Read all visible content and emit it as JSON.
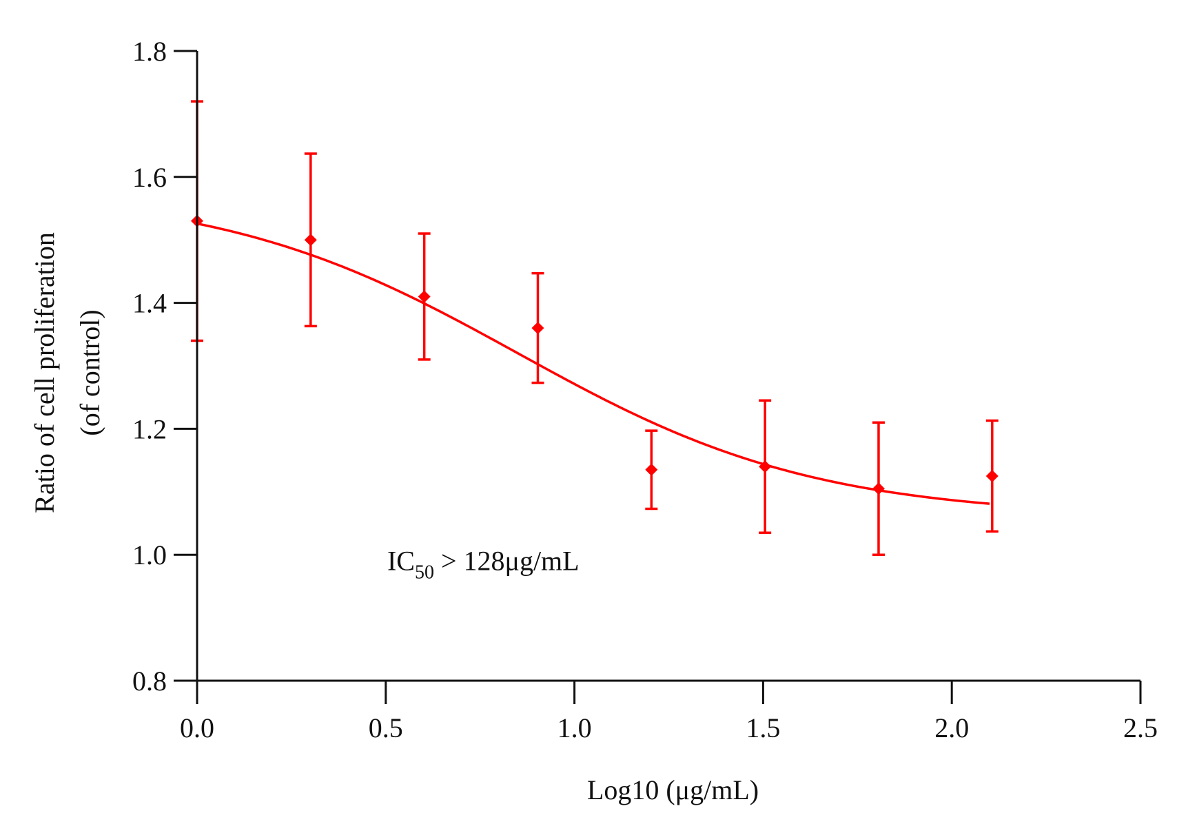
{
  "chart_data": {
    "type": "scatter",
    "xlabel": "Log10 (μg/mL)",
    "ylabel_lines": [
      "Ratio of cell proliferation",
      "(of control)"
    ],
    "xlim": [
      0.0,
      2.5
    ],
    "ylim": [
      0.8,
      1.8
    ],
    "x_ticks": [
      0.0,
      0.5,
      1.0,
      1.5,
      2.0,
      2.5
    ],
    "x_tick_labels": [
      "0.0",
      "0.5",
      "1.0",
      "1.5",
      "2.0",
      "2.5"
    ],
    "y_ticks": [
      0.8,
      1.0,
      1.2,
      1.4,
      1.6,
      1.8
    ],
    "y_tick_labels": [
      "0.8",
      "1.0",
      "1.2",
      "1.4",
      "1.6",
      "1.8"
    ],
    "grid": false,
    "color": "#ff0000",
    "series": [
      {
        "name": "Ratio of cell proliferation",
        "x": [
          0.0,
          0.301,
          0.602,
          0.903,
          1.204,
          1.505,
          1.806,
          2.107
        ],
        "y": [
          1.53,
          1.5,
          1.41,
          1.36,
          1.135,
          1.14,
          1.105,
          1.125
        ],
        "err": [
          0.19,
          0.137,
          0.1,
          0.087,
          0.062,
          0.105,
          0.105,
          0.088
        ]
      }
    ],
    "fit": {
      "model": "four-parameter logistic",
      "top": 1.58,
      "bottom": 1.06,
      "logIC50": 0.85,
      "hill": 1.1,
      "x_range": [
        0.0,
        2.1
      ]
    },
    "annotation": {
      "prefix": "IC",
      "subscript": "50",
      "suffix": " > 128μg/mL",
      "x": 0.23,
      "y": 0.98
    }
  }
}
